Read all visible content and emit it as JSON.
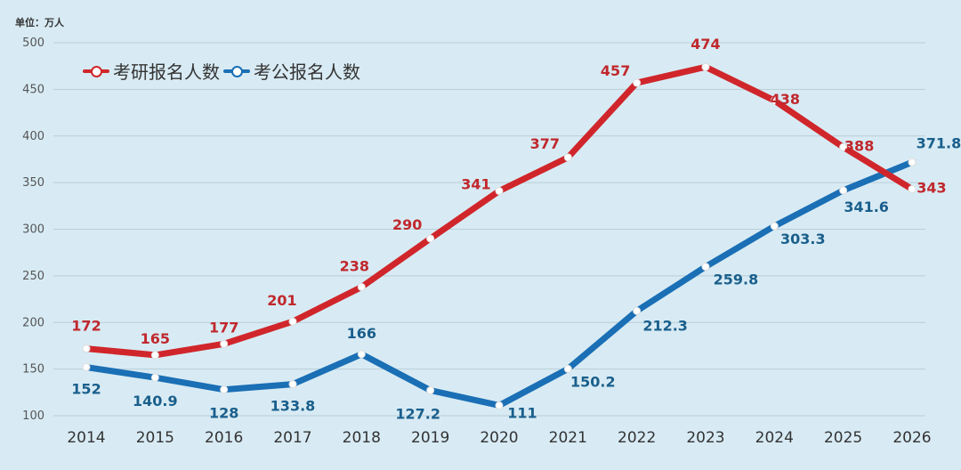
{
  "chart_data": {
    "type": "line",
    "title": "",
    "unit_label": "单位：万人",
    "xlabel": "",
    "ylabel": "单位：万人",
    "ylim": [
      100,
      500
    ],
    "yticks": [
      100,
      150,
      200,
      250,
      300,
      350,
      400,
      450,
      500
    ],
    "grid": true,
    "legend_position": "top-left",
    "categories": [
      "2014",
      "2015",
      "2016",
      "2017",
      "2018",
      "2019",
      "2020",
      "2021",
      "2022",
      "2023",
      "2024",
      "2025",
      "2026"
    ],
    "series": [
      {
        "name": "考研报名人数",
        "color": "#d0262b",
        "label_color": "#c0282d",
        "values": [
          172,
          165,
          177,
          201,
          238,
          290,
          341,
          377,
          457,
          474,
          438,
          388,
          343
        ],
        "labels": [
          "172",
          "165",
          "177",
          "201",
          "238",
          "290",
          "341",
          "377",
          "457",
          "474",
          "438",
          "388",
          "343"
        ]
      },
      {
        "name": "考公报名人数",
        "color": "#1a6fb5",
        "label_color": "#1a5f8c",
        "values": [
          152,
          140.9,
          128,
          133.8,
          166,
          127.2,
          111,
          150.2,
          212.3,
          259.8,
          303.3,
          341.6,
          371.8
        ],
        "labels": [
          "152",
          "140.9",
          "128",
          "133.8",
          "166",
          "127.2",
          "111",
          "150.2",
          "212.3",
          "259.8",
          "303.3",
          "341.6",
          "371.8"
        ]
      }
    ]
  },
  "legend": {
    "items": [
      {
        "label": "考研报名人数",
        "color": "#d0262b"
      },
      {
        "label": "考公报名人数",
        "color": "#1a6fb5"
      }
    ]
  }
}
